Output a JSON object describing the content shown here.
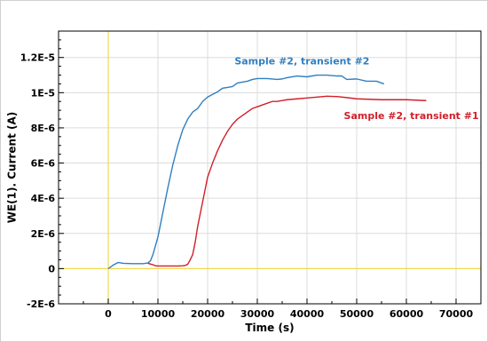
{
  "chart_data": {
    "type": "line",
    "xlabel": "Time (s)",
    "ylabel": "WE(1). Current (A)",
    "xlim": [
      -10000,
      75000
    ],
    "ylim": [
      -2e-06,
      1.35e-05
    ],
    "x_ticks": [
      0,
      10000,
      20000,
      30000,
      40000,
      50000,
      60000,
      70000
    ],
    "x_tick_labels": [
      "0",
      "10000",
      "20000",
      "30000",
      "40000",
      "50000",
      "60000",
      "70000"
    ],
    "y_ticks": [
      -2e-06,
      0,
      2e-06,
      4e-06,
      6e-06,
      8e-06,
      1e-05,
      1.2e-05
    ],
    "y_tick_labels": [
      "-2E-6",
      "0",
      "2E-6",
      "4E-6",
      "6E-6",
      "8E-6",
      "1E-5",
      "1.2E-5"
    ],
    "grid": true,
    "reference_lines": {
      "x": 0,
      "y": 0,
      "color": "#f2d94e"
    },
    "series": [
      {
        "name": "Sample #2, transient #2",
        "color": "#2f7fc1",
        "x": [
          0,
          1000,
          2000,
          3000,
          5000,
          7000,
          8000,
          8500,
          9000,
          10000,
          11000,
          12000,
          13000,
          14000,
          15000,
          16000,
          17000,
          18000,
          19000,
          20000,
          21000,
          22000,
          23000,
          24000,
          25000,
          26000,
          27000,
          28000,
          29000,
          30000,
          32000,
          34000,
          35000,
          36000,
          38000,
          40000,
          42000,
          44000,
          46000,
          47000,
          48000,
          50000,
          52000,
          54000,
          55500
        ],
        "y": [
          0,
          2e-07,
          3.5e-07,
          3e-07,
          2.8e-07,
          2.8e-07,
          3.2e-07,
          4.5e-07,
          8e-07,
          1.8e-06,
          3.2e-06,
          4.6e-06,
          5.9e-06,
          7e-06,
          7.9e-06,
          8.5e-06,
          8.9e-06,
          9.1e-06,
          9.5e-06,
          9.75e-06,
          9.9e-06,
          1.005e-05,
          1.025e-05,
          1.03e-05,
          1.035e-05,
          1.055e-05,
          1.06e-05,
          1.065e-05,
          1.075e-05,
          1.08e-05,
          1.08e-05,
          1.075e-05,
          1.078e-05,
          1.085e-05,
          1.095e-05,
          1.09e-05,
          1.1e-05,
          1.1e-05,
          1.095e-05,
          1.095e-05,
          1.075e-05,
          1.078e-05,
          1.065e-05,
          1.065e-05,
          1.05e-05
        ]
      },
      {
        "name": "Sample #2, transient #1",
        "color": "#d11f2a",
        "x": [
          8000,
          9000,
          9500,
          10000,
          11000,
          12000,
          13000,
          14000,
          15000,
          15500,
          16000,
          16500,
          17000,
          17500,
          18000,
          19000,
          20000,
          21000,
          22000,
          23000,
          24000,
          25000,
          26000,
          27000,
          28000,
          29000,
          30000,
          31000,
          32000,
          33000,
          34000,
          35000,
          36000,
          38000,
          40000,
          42000,
          44000,
          46000,
          48000,
          50000,
          55000,
          60000,
          64000
        ],
        "y": [
          3e-07,
          2.2e-07,
          1.6e-07,
          1.5e-07,
          1.5e-07,
          1.5e-07,
          1.5e-07,
          1.5e-07,
          1.6e-07,
          1.8e-07,
          2.5e-07,
          5e-07,
          8e-07,
          1.5e-06,
          2.4e-06,
          3.8e-06,
          5.2e-06,
          6e-06,
          6.7e-06,
          7.3e-06,
          7.8e-06,
          8.2e-06,
          8.5e-06,
          8.7e-06,
          8.9e-06,
          9.1e-06,
          9.2e-06,
          9.3e-06,
          9.4e-06,
          9.5e-06,
          9.5e-06,
          9.55e-06,
          9.6e-06,
          9.65e-06,
          9.7e-06,
          9.75e-06,
          9.8e-06,
          9.78e-06,
          9.72e-06,
          9.65e-06,
          9.6e-06,
          9.6e-06,
          9.55e-06
        ]
      }
    ],
    "annotations": [
      {
        "text": "Sample #2, transient #2",
        "series": 0,
        "at_x": 39000,
        "at_y": 1.16e-05
      },
      {
        "text": "Sample #2, transient #1",
        "series": 1,
        "at_x": 61000,
        "at_y": 8.5e-06
      }
    ]
  }
}
